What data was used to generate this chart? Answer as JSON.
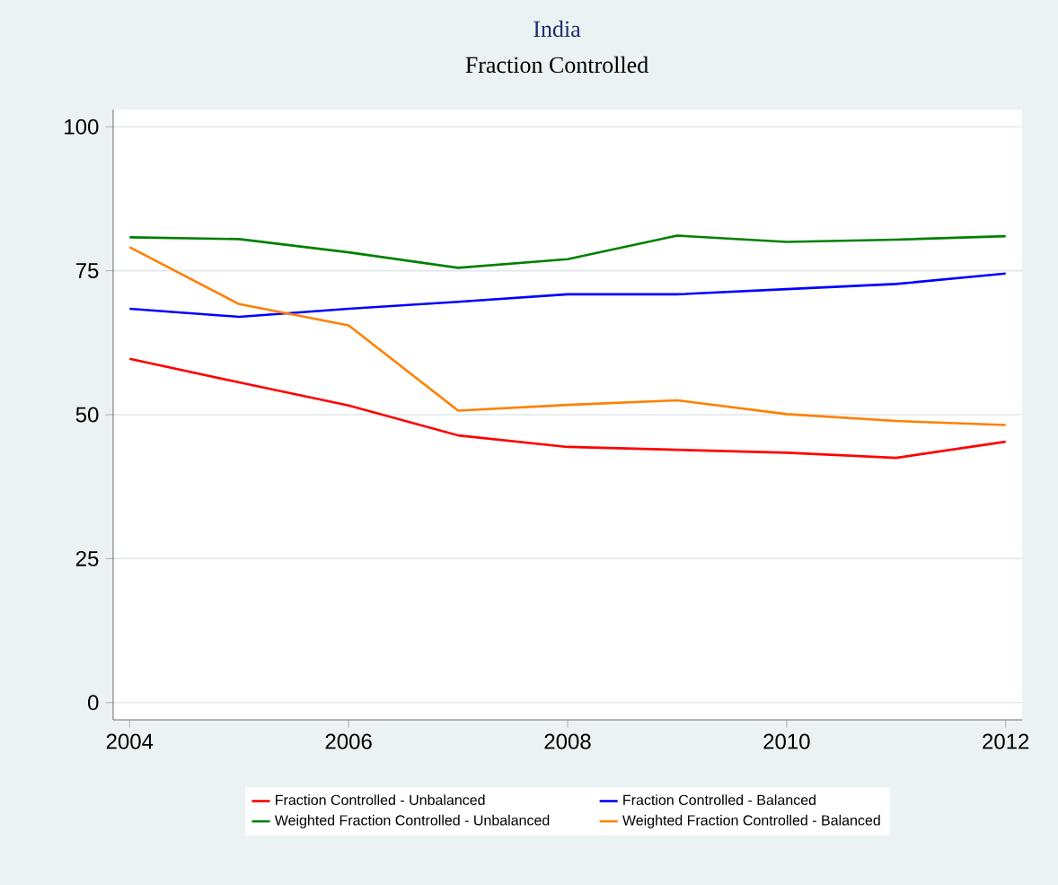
{
  "chart_data": {
    "type": "line",
    "title": "India",
    "subtitle": "Fraction Controlled",
    "x": [
      2004,
      2005,
      2006,
      2007,
      2008,
      2009,
      2010,
      2011,
      2012
    ],
    "xlim": [
      2003.85,
      2012.15
    ],
    "xticks": [
      2004,
      2006,
      2008,
      2010,
      2012
    ],
    "ylim": [
      -3,
      103
    ],
    "yticks": [
      0,
      25,
      50,
      75,
      100
    ],
    "grid": "y",
    "legend": "bottom",
    "series": [
      {
        "name": "Fraction Controlled - Unbalanced",
        "color": "#ff0000",
        "values": [
          59.7,
          55.6,
          51.6,
          46.4,
          44.4,
          43.9,
          43.4,
          42.5,
          45.3
        ]
      },
      {
        "name": "Fraction Controlled - Balanced",
        "color": "#0000ff",
        "values": [
          68.4,
          67.0,
          68.4,
          69.6,
          70.9,
          70.9,
          71.8,
          72.7,
          74.5
        ]
      },
      {
        "name": "Weighted Fraction Controlled - Unbalanced",
        "color": "#008000",
        "values": [
          80.8,
          80.5,
          78.2,
          75.5,
          77.0,
          81.1,
          80.0,
          80.4,
          81.0
        ]
      },
      {
        "name": "Weighted Fraction Controlled - Balanced",
        "color": "#ff8000",
        "values": [
          79.1,
          69.2,
          65.5,
          50.7,
          51.7,
          52.5,
          50.1,
          48.9,
          48.2
        ]
      }
    ]
  }
}
